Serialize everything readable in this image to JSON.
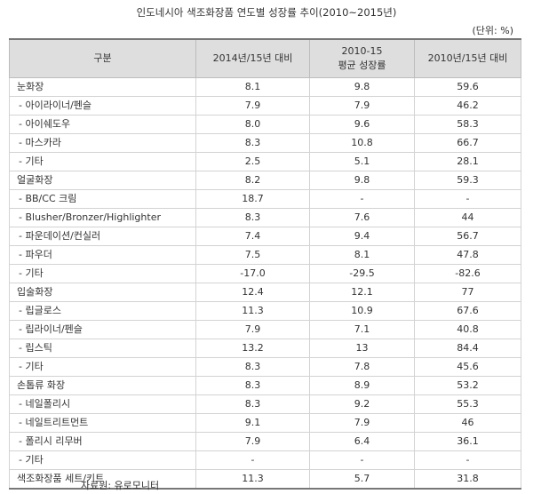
{
  "title": "인도네시아 색조화장품 연도별 성장률 추이(2010~2015년)",
  "unit": "(단위: %)",
  "headers": {
    "category": "구분",
    "col1": "2014년/15년 대비",
    "col2_line1": "2010-15",
    "col2_line2": "평균 성장률",
    "col3": "2010년/15년 대비"
  },
  "rows": [
    {
      "label": "눈화장",
      "sub": false,
      "v1": "8.1",
      "v2": "9.8",
      "v3": "59.6"
    },
    {
      "label": "- 아이라이너/펜슬",
      "sub": true,
      "v1": "7.9",
      "v2": "7.9",
      "v3": "46.2"
    },
    {
      "label": "- 아이쉐도우",
      "sub": true,
      "v1": "8.0",
      "v2": "9.6",
      "v3": "58.3"
    },
    {
      "label": "- 마스카라",
      "sub": true,
      "v1": "8.3",
      "v2": "10.8",
      "v3": "66.7"
    },
    {
      "label": "- 기타",
      "sub": true,
      "v1": "2.5",
      "v2": "5.1",
      "v3": "28.1"
    },
    {
      "label": "얼굴화장",
      "sub": false,
      "v1": "8.2",
      "v2": "9.8",
      "v3": "59.3"
    },
    {
      "label": "- BB/CC 크림",
      "sub": true,
      "v1": "18.7",
      "v2": "-",
      "v3": "-"
    },
    {
      "label": "- Blusher/Bronzer/Highlighter",
      "sub": true,
      "v1": "8.3",
      "v2": "7.6",
      "v3": "44"
    },
    {
      "label": "- 파운데이션/컨실러",
      "sub": true,
      "v1": "7.4",
      "v2": "9.4",
      "v3": "56.7"
    },
    {
      "label": "- 파우더",
      "sub": true,
      "v1": "7.5",
      "v2": "8.1",
      "v3": "47.8"
    },
    {
      "label": "- 기타",
      "sub": true,
      "v1": "-17.0",
      "v2": "-29.5",
      "v3": "-82.6"
    },
    {
      "label": "입술화장",
      "sub": false,
      "v1": "12.4",
      "v2": "12.1",
      "v3": "77"
    },
    {
      "label": "- 립글로스",
      "sub": true,
      "v1": "11.3",
      "v2": "10.9",
      "v3": "67.6"
    },
    {
      "label": "- 립라이너/펜슬",
      "sub": true,
      "v1": "7.9",
      "v2": "7.1",
      "v3": "40.8"
    },
    {
      "label": "- 립스틱",
      "sub": true,
      "v1": "13.2",
      "v2": "13",
      "v3": "84.4"
    },
    {
      "label": "- 기타",
      "sub": true,
      "v1": "8.3",
      "v2": "7.8",
      "v3": "45.6"
    },
    {
      "label": "손톱류 화장",
      "sub": false,
      "v1": "8.3",
      "v2": "8.9",
      "v3": "53.2"
    },
    {
      "label": "- 네일폴리시",
      "sub": true,
      "v1": "8.3",
      "v2": "9.2",
      "v3": "55.3"
    },
    {
      "label": "- 네일트리트먼트",
      "sub": true,
      "v1": "9.1",
      "v2": "7.9",
      "v3": "46"
    },
    {
      "label": "- 폴리시 리무버",
      "sub": true,
      "v1": "7.9",
      "v2": "6.4",
      "v3": "36.1"
    },
    {
      "label": "- 기타",
      "sub": true,
      "v1": "-",
      "v2": "-",
      "v3": "-"
    },
    {
      "label": "색조화장품 세트/키트",
      "sub": false,
      "v1": "11.3",
      "v2": "5.7",
      "v3": "31.8"
    }
  ],
  "source": "자료원: 유로모니터"
}
